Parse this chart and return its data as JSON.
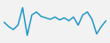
{
  "x": [
    0,
    1,
    2,
    3,
    4,
    5,
    6,
    7,
    8,
    9,
    10,
    11,
    12,
    13,
    14,
    15,
    16,
    17,
    18,
    19,
    20,
    21,
    22
  ],
  "y": [
    0.0,
    -1.5,
    -2.5,
    -1.0,
    5.0,
    -4.5,
    2.5,
    3.5,
    2.0,
    1.5,
    1.0,
    1.8,
    0.8,
    1.5,
    0.5,
    1.8,
    -1.0,
    2.5,
    3.5,
    1.0,
    -4.0,
    -1.5,
    0.5
  ],
  "line_color": "#2196c8",
  "line_width": 1.1,
  "background_color": "#f2f2f2",
  "ylim": [
    -6.5,
    7.0
  ]
}
